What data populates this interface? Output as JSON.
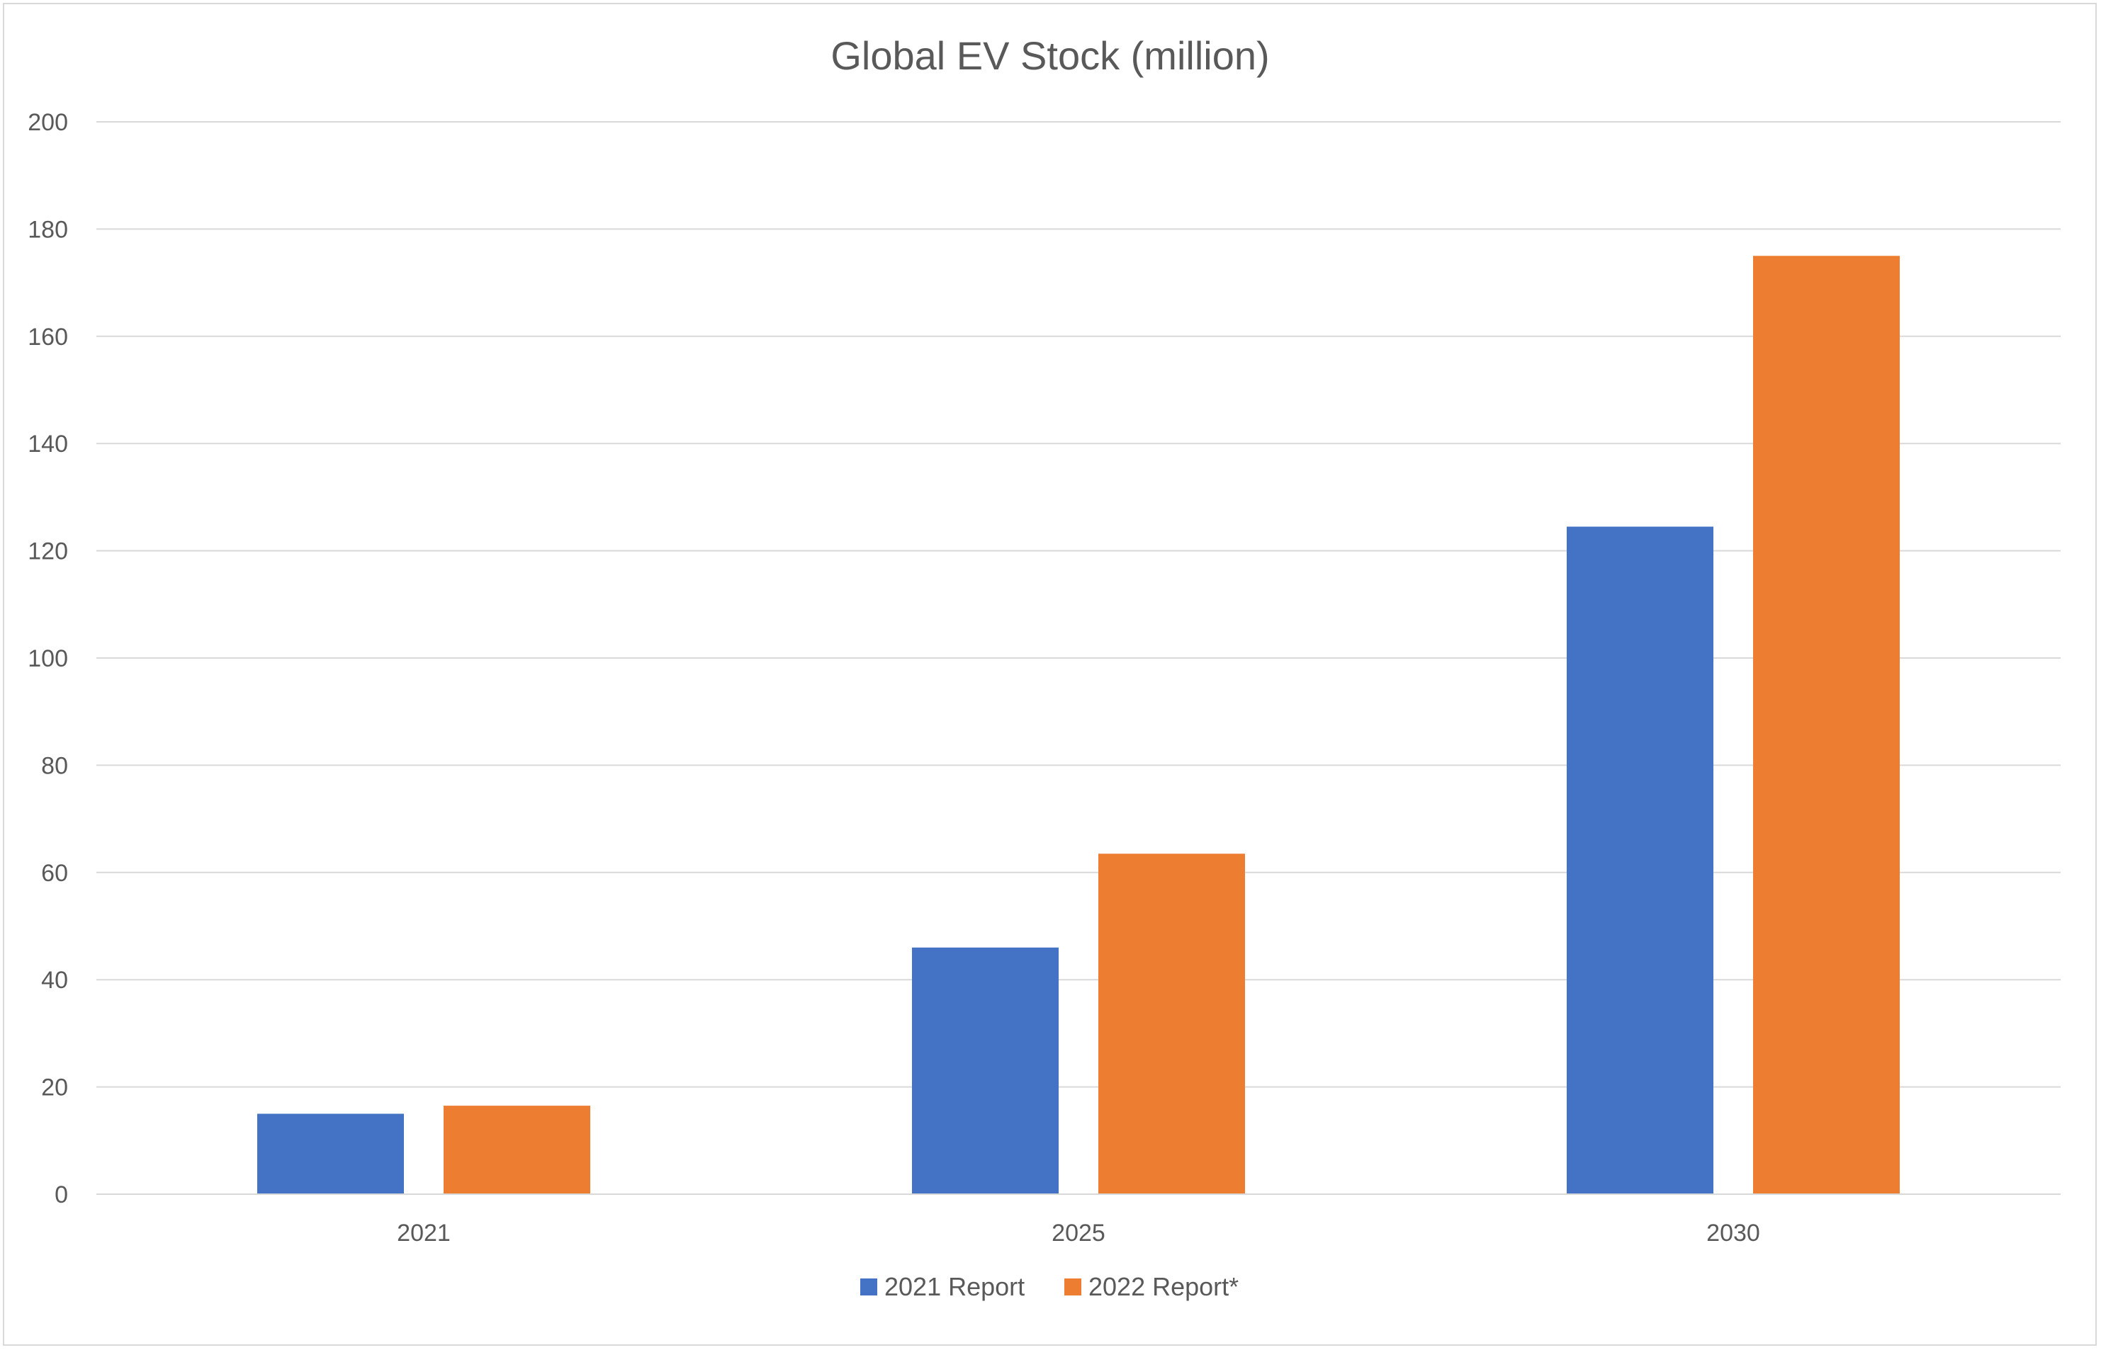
{
  "chart_data": {
    "type": "bar",
    "title": "Global EV Stock (million)",
    "xlabel": "",
    "ylabel": "",
    "categories": [
      "2021",
      "2025",
      "2030"
    ],
    "series": [
      {
        "name": "2021 Report",
        "values": [
          15,
          46,
          124.5
        ],
        "color": "#4472C4"
      },
      {
        "name": "2022 Report*",
        "values": [
          16.5,
          63.5,
          175
        ],
        "color": "#ED7D31"
      }
    ],
    "ylim": [
      0,
      200
    ],
    "yticks": [
      "0",
      "20",
      "40",
      "60",
      "80",
      "100",
      "120",
      "140",
      "160",
      "180",
      "200"
    ],
    "grid": true,
    "legend": "bottom",
    "gridline_color": "#d9d9d9",
    "text_color": "#595959"
  }
}
